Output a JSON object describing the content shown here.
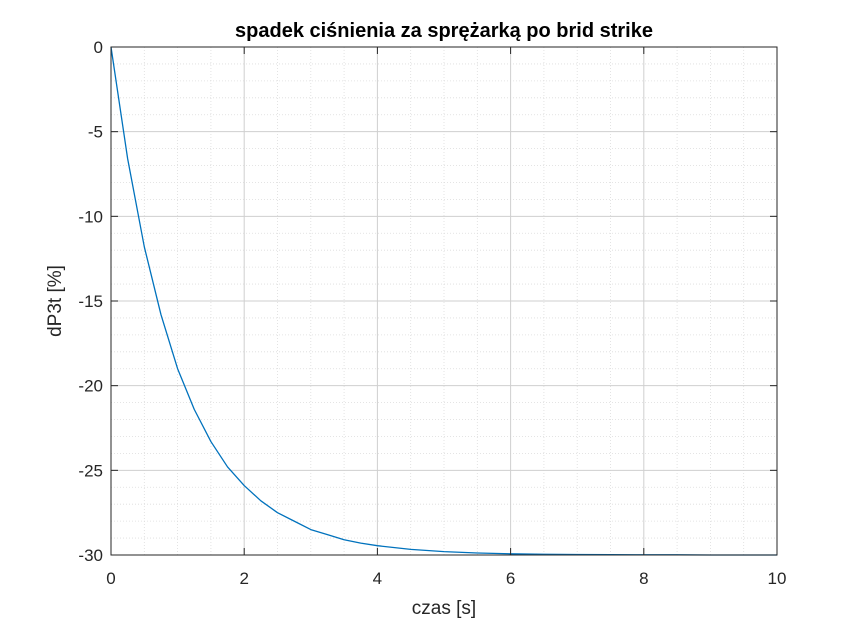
{
  "chart_data": {
    "type": "line",
    "title": "spadek ciśnienia za sprężarką po brid strike",
    "xlabel": "czas [s]",
    "ylabel": "dP3t [%]",
    "xlim": [
      0,
      10
    ],
    "ylim": [
      -30,
      0
    ],
    "xticks": [
      0,
      2,
      4,
      6,
      8,
      10
    ],
    "yticks": [
      -30,
      -25,
      -20,
      -15,
      -10,
      -5,
      0
    ],
    "xtick_labels": [
      "0",
      "2",
      "4",
      "6",
      "8",
      "10"
    ],
    "ytick_labels": [
      "-30",
      "-25",
      "-20",
      "-15",
      "-10",
      "-5",
      "0"
    ],
    "grid": true,
    "minor_grid": true,
    "series": [
      {
        "color": "#0072BD",
        "x": [
          0,
          0.25,
          0.5,
          0.75,
          1,
          1.25,
          1.5,
          1.75,
          2,
          2.25,
          2.5,
          2.75,
          3,
          3.25,
          3.5,
          3.75,
          4,
          4.5,
          5,
          5.5,
          6,
          6.5,
          7,
          7.5,
          8,
          8.5,
          9,
          9.5,
          10
        ],
        "y": [
          0,
          -6.6,
          -11.8,
          -15.8,
          -19.0,
          -21.4,
          -23.3,
          -24.8,
          -25.9,
          -26.8,
          -27.5,
          -28.0,
          -28.5,
          -28.8,
          -29.1,
          -29.3,
          -29.45,
          -29.67,
          -29.8,
          -29.88,
          -29.93,
          -29.96,
          -29.97,
          -29.98,
          -29.99,
          -29.99,
          -30.0,
          -30.0,
          -30.0
        ]
      }
    ]
  }
}
